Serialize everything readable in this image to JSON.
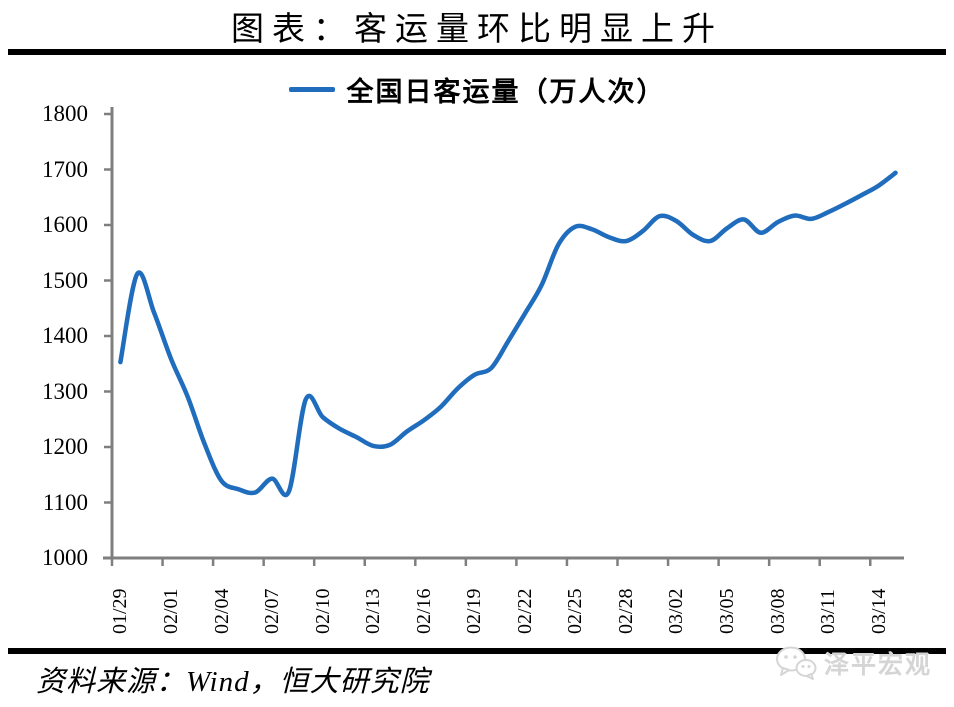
{
  "title": "图表：客运量环比明显上升",
  "legend": {
    "label": "全国日客运量（万人次）"
  },
  "footer": {
    "source_text": "资料来源：Wind，恒大研究院"
  },
  "watermark": {
    "brand": "泽平宏观",
    "icon": "wechat-icon"
  },
  "colors": {
    "line": "#1f6dbc",
    "axis": "#7f7f7f",
    "rule": "#000000",
    "watermark": "#d5d5d5",
    "background": "#ffffff"
  },
  "chart_data": {
    "type": "line",
    "title": "图表：客运量环比明显上升",
    "series_name": "全国日客运量（万人次）",
    "xlabel": "",
    "ylabel": "",
    "ylim": [
      1000,
      1800
    ],
    "y_ticks": [
      1000,
      1100,
      1200,
      1300,
      1400,
      1500,
      1600,
      1700,
      1800
    ],
    "x_tick_labels": [
      "01/29",
      "02/01",
      "02/04",
      "02/07",
      "02/10",
      "02/13",
      "02/16",
      "02/19",
      "02/22",
      "02/25",
      "02/28",
      "03/02",
      "03/05",
      "03/08",
      "03/11",
      "03/14"
    ],
    "x": [
      "01/29",
      "01/30",
      "01/31",
      "02/01",
      "02/02",
      "02/03",
      "02/04",
      "02/05",
      "02/06",
      "02/07",
      "02/08",
      "02/09",
      "02/10",
      "02/11",
      "02/12",
      "02/13",
      "02/14",
      "02/15",
      "02/16",
      "02/17",
      "02/18",
      "02/19",
      "02/20",
      "02/21",
      "02/22",
      "02/23",
      "02/24",
      "02/25",
      "02/26",
      "02/27",
      "02/28",
      "02/29",
      "03/01",
      "03/02",
      "03/03",
      "03/04",
      "03/05",
      "03/06",
      "03/07",
      "03/08",
      "03/09",
      "03/10",
      "03/11",
      "03/12",
      "03/13",
      "03/14",
      "03/15"
    ],
    "values": [
      1353,
      1512,
      1442,
      1359,
      1290,
      1205,
      1139,
      1124,
      1118,
      1143,
      1120,
      1286,
      1254,
      1233,
      1218,
      1202,
      1204,
      1228,
      1248,
      1272,
      1305,
      1330,
      1342,
      1390,
      1440,
      1492,
      1565,
      1597,
      1592,
      1578,
      1571,
      1589,
      1616,
      1607,
      1582,
      1571,
      1594,
      1610,
      1586,
      1605,
      1617,
      1611,
      1623,
      1638,
      1654,
      1671,
      1694
    ],
    "grid": false,
    "legend_position": "top",
    "line_smoothing": true
  }
}
